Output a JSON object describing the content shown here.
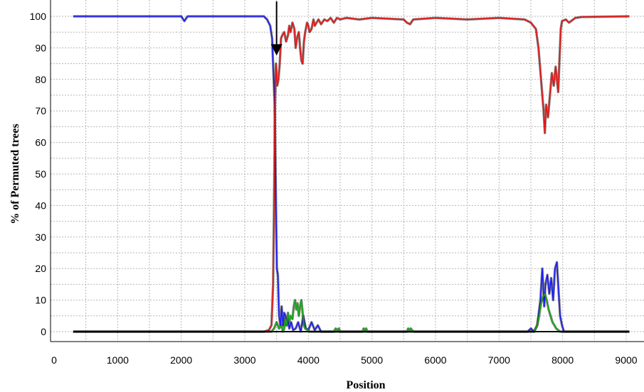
{
  "chart_data": {
    "type": "line",
    "xlabel": "Position",
    "ylabel": "% of Permuted trees",
    "xlim": [
      0,
      9000
    ],
    "ylim": [
      0,
      100
    ],
    "x_ticks": [
      0,
      1000,
      2000,
      3000,
      4000,
      5000,
      6000,
      7000,
      8000,
      9000
    ],
    "y_ticks": [
      0,
      10,
      20,
      30,
      40,
      50,
      60,
      70,
      80,
      90,
      100
    ],
    "grid": "dotted",
    "legend": "none",
    "annotation": {
      "type": "arrow",
      "x": 3500,
      "y_from": 103,
      "y_to": 88
    },
    "series": [
      {
        "color": "#1a1aff",
        "points": [
          [
            300,
            100
          ],
          [
            2000,
            100
          ],
          [
            2050,
            98.5
          ],
          [
            2100,
            100
          ],
          [
            3300,
            100
          ],
          [
            3350,
            99
          ],
          [
            3400,
            97
          ],
          [
            3430,
            93
          ],
          [
            3455,
            80
          ],
          [
            3470,
            72
          ],
          [
            3490,
            40
          ],
          [
            3505,
            20
          ],
          [
            3520,
            18
          ],
          [
            3540,
            5
          ],
          [
            3560,
            2
          ],
          [
            3580,
            8
          ],
          [
            3600,
            2
          ],
          [
            3620,
            6
          ],
          [
            3640,
            5
          ],
          [
            3660,
            2
          ],
          [
            3680,
            4
          ],
          [
            3700,
            1
          ],
          [
            3730,
            3
          ],
          [
            3760,
            0.5
          ],
          [
            3800,
            1
          ],
          [
            3840,
            3
          ],
          [
            3880,
            0
          ],
          [
            3920,
            5
          ],
          [
            3960,
            1
          ],
          [
            4000,
            0.5
          ],
          [
            4050,
            3
          ],
          [
            4100,
            0.5
          ],
          [
            4150,
            2
          ],
          [
            4200,
            0
          ],
          [
            7450,
            0
          ],
          [
            7500,
            1
          ],
          [
            7550,
            0
          ],
          [
            7600,
            2
          ],
          [
            7650,
            10
          ],
          [
            7680,
            20
          ],
          [
            7710,
            8
          ],
          [
            7730,
            15
          ],
          [
            7760,
            18
          ],
          [
            7790,
            12
          ],
          [
            7820,
            17
          ],
          [
            7850,
            10
          ],
          [
            7880,
            20
          ],
          [
            7910,
            22
          ],
          [
            7930,
            15
          ],
          [
            7960,
            5
          ],
          [
            7990,
            2
          ],
          [
            8020,
            0
          ],
          [
            9050,
            0
          ]
        ]
      },
      {
        "color": "#ee1111",
        "points": [
          [
            300,
            0
          ],
          [
            3300,
            0
          ],
          [
            3380,
            0.5
          ],
          [
            3420,
            2
          ],
          [
            3445,
            15
          ],
          [
            3460,
            40
          ],
          [
            3475,
            72
          ],
          [
            3490,
            85
          ],
          [
            3510,
            78
          ],
          [
            3530,
            80
          ],
          [
            3550,
            85
          ],
          [
            3570,
            93
          ],
          [
            3590,
            94
          ],
          [
            3620,
            95
          ],
          [
            3650,
            92
          ],
          [
            3680,
            94
          ],
          [
            3700,
            97
          ],
          [
            3720,
            95
          ],
          [
            3750,
            98
          ],
          [
            3780,
            96
          ],
          [
            3800,
            90
          ],
          [
            3820,
            93
          ],
          [
            3850,
            95
          ],
          [
            3870,
            90
          ],
          [
            3890,
            86
          ],
          [
            3910,
            85
          ],
          [
            3930,
            92
          ],
          [
            3950,
            95
          ],
          [
            3980,
            98
          ],
          [
            4000,
            97
          ],
          [
            4020,
            95
          ],
          [
            4050,
            96
          ],
          [
            4080,
            99
          ],
          [
            4100,
            97
          ],
          [
            4130,
            98
          ],
          [
            4160,
            99
          ],
          [
            4200,
            97.5
          ],
          [
            4250,
            99
          ],
          [
            4300,
            98.5
          ],
          [
            4350,
            99.5
          ],
          [
            4400,
            98
          ],
          [
            4450,
            99.5
          ],
          [
            4500,
            99
          ],
          [
            4600,
            99.5
          ],
          [
            4800,
            99
          ],
          [
            5000,
            99.5
          ],
          [
            5500,
            99
          ],
          [
            5550,
            98
          ],
          [
            5600,
            97.5
          ],
          [
            5650,
            99
          ],
          [
            6000,
            99.5
          ],
          [
            6500,
            99
          ],
          [
            7000,
            99.5
          ],
          [
            7400,
            99
          ],
          [
            7500,
            98
          ],
          [
            7580,
            96
          ],
          [
            7620,
            90
          ],
          [
            7660,
            80
          ],
          [
            7700,
            70
          ],
          [
            7720,
            63
          ],
          [
            7740,
            72
          ],
          [
            7770,
            68
          ],
          [
            7800,
            75
          ],
          [
            7830,
            82
          ],
          [
            7860,
            78
          ],
          [
            7890,
            84
          ],
          [
            7910,
            80
          ],
          [
            7930,
            76
          ],
          [
            7950,
            86
          ],
          [
            7970,
            96
          ],
          [
            7990,
            98.5
          ],
          [
            8050,
            99
          ],
          [
            8100,
            98
          ],
          [
            8200,
            99.5
          ],
          [
            8300,
            99.8
          ],
          [
            9050,
            100
          ]
        ]
      },
      {
        "color": "#11aa11",
        "points": [
          [
            300,
            0
          ],
          [
            3420,
            0
          ],
          [
            3460,
            1
          ],
          [
            3500,
            3
          ],
          [
            3540,
            1
          ],
          [
            3580,
            2
          ],
          [
            3600,
            0
          ],
          [
            3620,
            1
          ],
          [
            3640,
            4
          ],
          [
            3660,
            2
          ],
          [
            3680,
            6
          ],
          [
            3700,
            3
          ],
          [
            3720,
            5
          ],
          [
            3750,
            4
          ],
          [
            3770,
            8
          ],
          [
            3790,
            10
          ],
          [
            3810,
            7
          ],
          [
            3830,
            9
          ],
          [
            3850,
            5
          ],
          [
            3870,
            8
          ],
          [
            3890,
            10
          ],
          [
            3910,
            6
          ],
          [
            3930,
            2
          ],
          [
            3950,
            1
          ],
          [
            4000,
            0.5
          ],
          [
            4020,
            0
          ],
          [
            4400,
            0
          ],
          [
            4430,
            1
          ],
          [
            4460,
            0.5
          ],
          [
            4480,
            1
          ],
          [
            4500,
            0
          ],
          [
            4850,
            0
          ],
          [
            4870,
            1
          ],
          [
            4890,
            0.5
          ],
          [
            4910,
            1
          ],
          [
            4930,
            0
          ],
          [
            5550,
            0
          ],
          [
            5570,
            1
          ],
          [
            5590,
            0.5
          ],
          [
            5610,
            1
          ],
          [
            5630,
            0.5
          ],
          [
            5660,
            0
          ],
          [
            7550,
            0
          ],
          [
            7600,
            2
          ],
          [
            7630,
            5
          ],
          [
            7660,
            9
          ],
          [
            7690,
            11
          ],
          [
            7720,
            12
          ],
          [
            7750,
            10
          ],
          [
            7780,
            7
          ],
          [
            7810,
            5
          ],
          [
            7840,
            3
          ],
          [
            7870,
            2
          ],
          [
            7900,
            1
          ],
          [
            7930,
            0.5
          ],
          [
            7960,
            0
          ],
          [
            9050,
            0
          ]
        ]
      },
      {
        "color": "#000000",
        "points": [
          [
            300,
            0
          ],
          [
            9050,
            0
          ]
        ]
      }
    ]
  }
}
